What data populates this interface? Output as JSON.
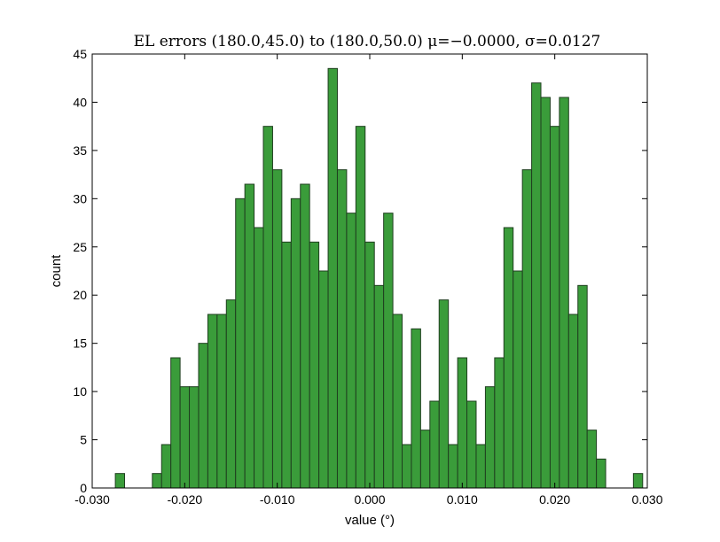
{
  "chart_data": {
    "type": "bar",
    "title": "EL errors (180.0,45.0) to (180.0,50.0) μ=−0.0000, σ=0.0127",
    "xlabel": "value (°)",
    "ylabel": "count",
    "xlim": [
      -0.03,
      0.03
    ],
    "ylim": [
      0,
      45
    ],
    "xticks": [
      -0.03,
      -0.02,
      -0.01,
      0.0,
      0.01,
      0.02,
      0.03
    ],
    "xtick_labels": [
      "-0.030",
      "-0.020",
      "-0.010",
      "0.000",
      "0.010",
      "0.020",
      "0.030"
    ],
    "yticks": [
      0,
      5,
      10,
      15,
      20,
      25,
      30,
      35,
      40,
      45
    ],
    "ytick_labels": [
      "0",
      "5",
      "10",
      "15",
      "20",
      "25",
      "30",
      "35",
      "40",
      "45"
    ],
    "grid": false,
    "bar_color": "#3a9c3a",
    "bar_edge_color": "#1f3f1f",
    "bin_width": 0.001,
    "bin_starts": [
      -0.0275,
      -0.0265,
      -0.0255,
      -0.0245,
      -0.0235,
      -0.0225,
      -0.0215,
      -0.0205,
      -0.0195,
      -0.0185,
      -0.0175,
      -0.0165,
      -0.0155,
      -0.0145,
      -0.0135,
      -0.0125,
      -0.0115,
      -0.0105,
      -0.0095,
      -0.0085,
      -0.0075,
      -0.0065,
      -0.0055,
      -0.0045,
      -0.0035,
      -0.0025,
      -0.0015,
      -0.0005,
      0.0005,
      0.0015,
      0.0025,
      0.0035,
      0.0045,
      0.0055,
      0.0065,
      0.0075,
      0.0085,
      0.0095,
      0.0105,
      0.0115,
      0.0125,
      0.0135,
      0.0145,
      0.0155,
      0.0165,
      0.0175,
      0.0185,
      0.0195,
      0.0205,
      0.0215,
      0.0225,
      0.0235,
      0.0245,
      0.0255,
      0.0265,
      0.0275,
      0.0285
    ],
    "values": [
      1.5,
      0,
      0,
      0,
      1.5,
      4.5,
      13.5,
      10.5,
      10.5,
      15,
      18,
      18,
      19.5,
      30,
      31.5,
      27,
      37.5,
      33,
      25.5,
      30,
      31.5,
      25.5,
      22.5,
      43.5,
      33,
      28.5,
      37.5,
      25.5,
      21,
      28.5,
      18,
      4.5,
      16.5,
      6,
      9,
      19.5,
      4.5,
      13.5,
      9,
      4.5,
      10.5,
      13.5,
      27,
      22.5,
      33,
      42,
      40.5,
      37.5,
      40.5,
      18,
      21,
      6,
      3,
      0,
      0,
      0,
      1.5
    ]
  }
}
